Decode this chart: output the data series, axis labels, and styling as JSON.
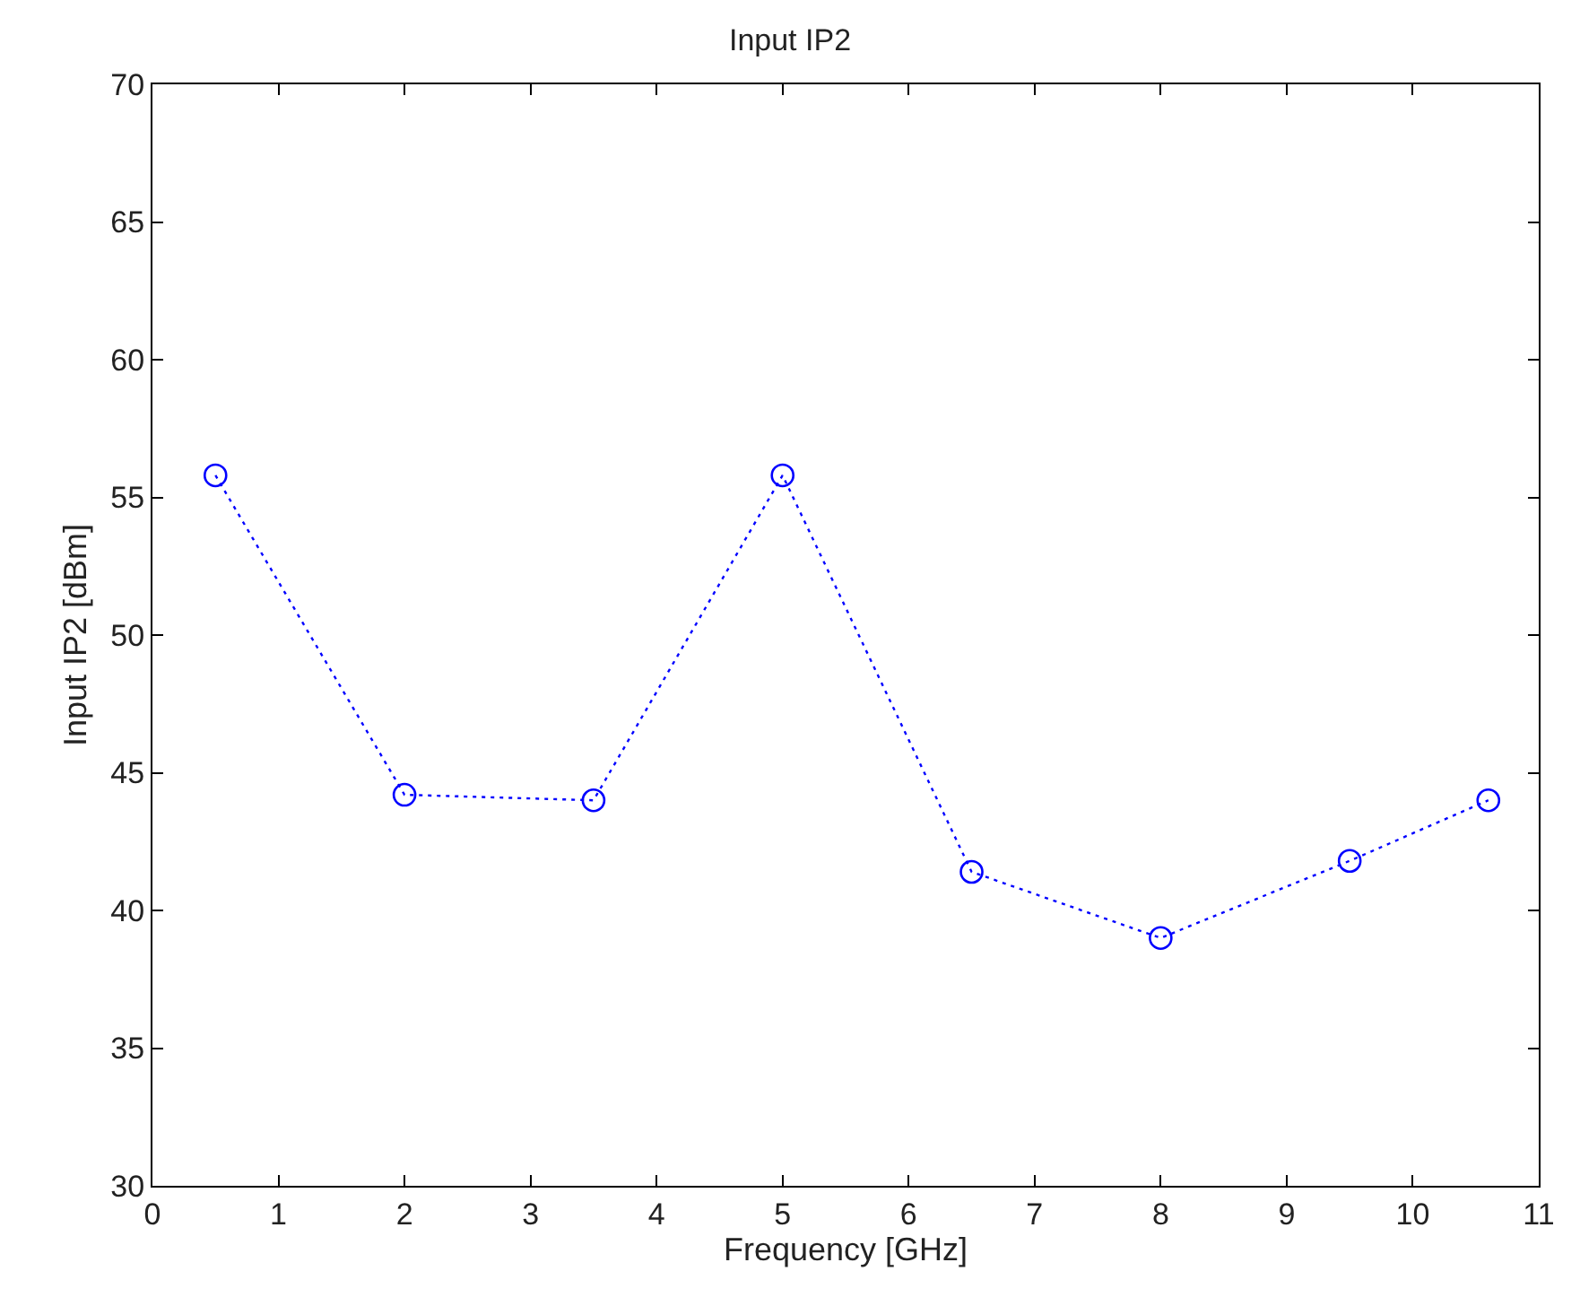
{
  "chart_data": {
    "type": "line",
    "title": "Input IP2",
    "xlabel": "Frequency [GHz]",
    "ylabel": "Input IP2 [dBm]",
    "x": [
      0.5,
      2,
      3.5,
      5,
      6.5,
      8,
      9.5,
      10.6
    ],
    "series": [
      {
        "color": "#0000ff",
        "values": [
          55.8,
          44.2,
          44.0,
          55.8,
          41.4,
          39.0,
          41.8,
          44.0
        ]
      }
    ],
    "xlim": [
      0,
      11
    ],
    "xticks": [
      0,
      1,
      2,
      3,
      4,
      5,
      6,
      7,
      8,
      9,
      10,
      11
    ],
    "ylim": [
      30,
      70
    ],
    "yticks": [
      30,
      35,
      40,
      45,
      50,
      55,
      60,
      65,
      70
    ],
    "marker": "circle",
    "line_style": "dotted"
  }
}
